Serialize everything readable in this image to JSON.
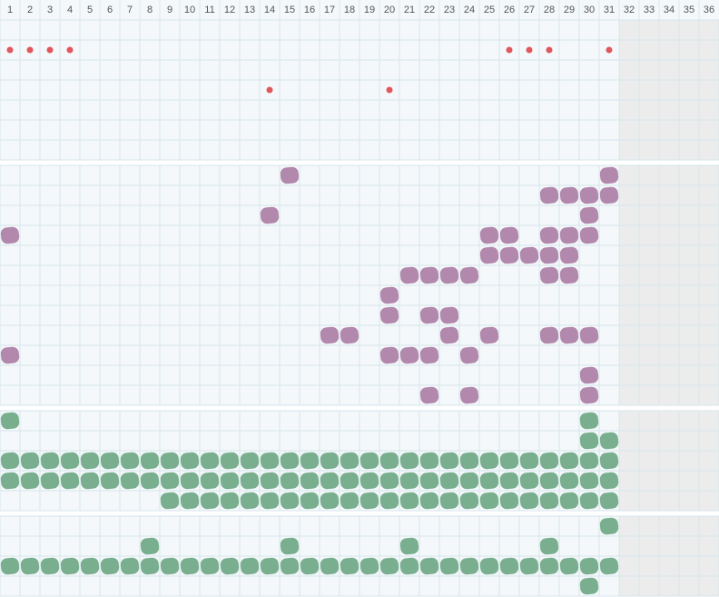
{
  "header": {
    "days": [
      1,
      2,
      3,
      4,
      5,
      6,
      7,
      8,
      9,
      10,
      11,
      12,
      13,
      14,
      15,
      16,
      17,
      18,
      19,
      20,
      21,
      22,
      23,
      24,
      25,
      26,
      27,
      28,
      29,
      30,
      31,
      32,
      33,
      34,
      35,
      36
    ]
  },
  "sections": [
    {
      "color": "#e0585e",
      "rows": [
        [],
        [
          1,
          2,
          3,
          4,
          26,
          27,
          28,
          31
        ],
        [],
        [
          14,
          20
        ],
        [],
        [],
        []
      ]
    },
    {
      "color": "#b288ac",
      "rows": [
        [
          15,
          31
        ],
        [
          28,
          29,
          30,
          31
        ],
        [
          14,
          30
        ],
        [
          1,
          25,
          26,
          28,
          29,
          30
        ],
        [
          25,
          26,
          27,
          28,
          29
        ],
        [
          21,
          22,
          23,
          24,
          28,
          29
        ],
        [
          20
        ],
        [
          20,
          22,
          23
        ],
        [
          17,
          18,
          23,
          25,
          28,
          29,
          30
        ],
        [
          1,
          20,
          21,
          22,
          24
        ],
        [
          30
        ],
        [
          22,
          24,
          30
        ]
      ]
    },
    {
      "color": "#79ae8e",
      "rows": [
        [
          1,
          30
        ],
        [
          30,
          31
        ],
        [
          1,
          2,
          3,
          4,
          5,
          6,
          7,
          8,
          9,
          10,
          11,
          12,
          13,
          14,
          15,
          16,
          17,
          18,
          19,
          20,
          21,
          22,
          23,
          24,
          25,
          26,
          27,
          28,
          29,
          30,
          31
        ],
        [
          1,
          2,
          3,
          4,
          5,
          6,
          7,
          8,
          9,
          10,
          11,
          12,
          13,
          14,
          15,
          16,
          17,
          18,
          19,
          20,
          21,
          22,
          23,
          24,
          25,
          26,
          27,
          28,
          29,
          30,
          31
        ],
        [
          9,
          10,
          11,
          12,
          13,
          14,
          15,
          16,
          17,
          18,
          19,
          20,
          21,
          22,
          23,
          24,
          25,
          26,
          27,
          28,
          29,
          30,
          31
        ]
      ]
    },
    {
      "color": "#79ae8e",
      "rows": [
        [
          31
        ],
        [
          8,
          15,
          21,
          28
        ],
        [
          1,
          2,
          3,
          4,
          5,
          6,
          7,
          8,
          9,
          10,
          11,
          12,
          13,
          14,
          15,
          16,
          17,
          18,
          19,
          20,
          21,
          22,
          23,
          24,
          25,
          26,
          27,
          28,
          29,
          30,
          31
        ],
        [
          30
        ]
      ]
    }
  ]
}
